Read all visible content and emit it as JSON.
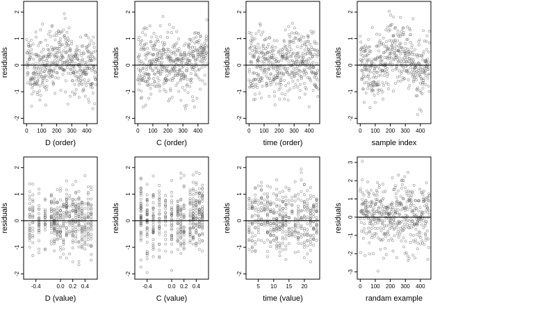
{
  "chart_data": [
    {
      "type": "scatter",
      "xlabel": "D (order)",
      "ylabel": "residuals",
      "xlim": [
        -20,
        470
      ],
      "ylim": [
        -2.2,
        2.4
      ],
      "xticks": [
        0,
        100,
        200,
        300,
        400
      ],
      "xtick_labels": [
        "0",
        "100",
        "200",
        "300",
        "400"
      ],
      "yticks": [
        -2,
        -1,
        0,
        1,
        2
      ],
      "ytick_labels": [
        "-2",
        "-1",
        "0",
        "1",
        "2"
      ],
      "hline": 0,
      "n_points": 450,
      "x_range": [
        0,
        460
      ],
      "x_values": "",
      "trend": [
        [
          0,
          0.2
        ],
        [
          50,
          -0.15
        ],
        [
          100,
          -0.1
        ],
        [
          150,
          0.05
        ],
        [
          200,
          0.35
        ],
        [
          250,
          0.45
        ],
        [
          300,
          0.0
        ],
        [
          350,
          -0.1
        ],
        [
          400,
          0.15
        ],
        [
          460,
          -0.1
        ]
      ],
      "spread": 0.6,
      "seed": 11
    },
    {
      "type": "scatter",
      "xlabel": "C (order)",
      "ylabel": "residuals",
      "xlim": [
        -20,
        470
      ],
      "ylim": [
        -2.2,
        2.4
      ],
      "xticks": [
        0,
        100,
        200,
        300,
        400
      ],
      "xtick_labels": [
        "0",
        "100",
        "200",
        "300",
        "400"
      ],
      "yticks": [
        -2,
        -1,
        0,
        1,
        2
      ],
      "ytick_labels": [
        "-2",
        "-1",
        "0",
        "1",
        "2"
      ],
      "hline": 0,
      "n_points": 450,
      "x_range": [
        0,
        460
      ],
      "x_values": "",
      "trend": [
        [
          0,
          0.1
        ],
        [
          100,
          -0.05
        ],
        [
          200,
          0.0
        ],
        [
          300,
          -0.1
        ],
        [
          400,
          0.3
        ],
        [
          460,
          0.45
        ]
      ],
      "spread": 0.6,
      "seed": 23
    },
    {
      "type": "scatter",
      "xlabel": "time (order)",
      "ylabel": "residuals",
      "xlim": [
        -20,
        470
      ],
      "ylim": [
        -2.2,
        2.4
      ],
      "xticks": [
        0,
        100,
        200,
        300,
        400
      ],
      "xtick_labels": [
        "0",
        "100",
        "200",
        "300",
        "400"
      ],
      "yticks": [
        -2,
        -1,
        0,
        1,
        2
      ],
      "ytick_labels": [
        "-2",
        "-1",
        "0",
        "1",
        "2"
      ],
      "hline": 0,
      "n_points": 450,
      "x_range": [
        0,
        460
      ],
      "x_values": "",
      "trend": [
        [
          0,
          0.1
        ],
        [
          50,
          -0.1
        ],
        [
          100,
          0.35
        ],
        [
          150,
          0.05
        ],
        [
          200,
          -0.2
        ],
        [
          250,
          0.1
        ],
        [
          300,
          0.15
        ],
        [
          350,
          0.0
        ],
        [
          400,
          0.3
        ],
        [
          460,
          -0.05
        ]
      ],
      "spread": 0.6,
      "seed": 37
    },
    {
      "type": "scatter",
      "xlabel": "sample index",
      "ylabel": "residuals",
      "xlim": [
        -20,
        470
      ],
      "ylim": [
        -2.2,
        2.4
      ],
      "xticks": [
        0,
        100,
        200,
        300,
        400
      ],
      "xtick_labels": [
        "0",
        "100",
        "200",
        "300",
        "400"
      ],
      "yticks": [
        -2,
        -1,
        0,
        1,
        2
      ],
      "ytick_labels": [
        "-2",
        "-1",
        "0",
        "1",
        "2"
      ],
      "hline": 0,
      "n_points": 450,
      "x_range": [
        0,
        460
      ],
      "x_values": "",
      "trend": [
        [
          0,
          0.1
        ],
        [
          50,
          -0.1
        ],
        [
          100,
          0.0
        ],
        [
          150,
          -0.05
        ],
        [
          200,
          0.55
        ],
        [
          250,
          0.5
        ],
        [
          300,
          0.25
        ],
        [
          350,
          0.15
        ],
        [
          400,
          -0.3
        ],
        [
          460,
          0.0
        ]
      ],
      "spread": 0.6,
      "seed": 41
    },
    {
      "type": "scatter",
      "xlabel": "D (value)",
      "ylabel": "residuals",
      "xlim": [
        -0.6,
        0.6
      ],
      "ylim": [
        -2.2,
        2.4
      ],
      "xticks": [
        -0.4,
        0.0,
        0.2,
        0.4
      ],
      "xtick_labels": [
        "-0.4",
        "0.0",
        "0.2",
        "0.4"
      ],
      "yticks": [
        -2,
        -1,
        0,
        1,
        2
      ],
      "ytick_labels": [
        "-2",
        "-1",
        "0",
        "1",
        "2"
      ],
      "hline": 0,
      "n_points": 450,
      "x_range": [
        -0.5,
        0.5
      ],
      "x_values": [
        -0.5,
        -0.45,
        -0.35,
        -0.25,
        -0.15,
        -0.1,
        -0.05,
        0.0,
        0.05,
        0.1,
        0.15,
        0.2,
        0.25,
        0.3,
        0.35,
        0.4,
        0.45,
        0.5
      ],
      "trend": [
        [
          -0.5,
          0.1
        ],
        [
          -0.2,
          -0.05
        ],
        [
          0.0,
          0.0
        ],
        [
          0.2,
          0.05
        ],
        [
          0.5,
          0.05
        ]
      ],
      "spread": 0.6,
      "seed": 53
    },
    {
      "type": "scatter",
      "xlabel": "C (value)",
      "ylabel": "residuals",
      "xlim": [
        -0.6,
        0.6
      ],
      "ylim": [
        -2.2,
        2.4
      ],
      "xticks": [
        -0.4,
        0.0,
        0.2,
        0.4
      ],
      "xtick_labels": [
        "-0.4",
        "0.0",
        "0.2",
        "0.4"
      ],
      "yticks": [
        -2,
        -1,
        0,
        1,
        2
      ],
      "ytick_labels": [
        "-2",
        "-1",
        "0",
        "1",
        "2"
      ],
      "hline": 0,
      "n_points": 450,
      "x_range": [
        -0.5,
        0.5
      ],
      "x_values": [
        -0.5,
        -0.4,
        -0.3,
        -0.2,
        -0.1,
        0.0,
        0.1,
        0.15,
        0.2,
        0.3,
        0.35,
        0.4,
        0.45,
        0.5
      ],
      "trend": [
        [
          -0.5,
          0.0
        ],
        [
          0.0,
          0.0
        ],
        [
          0.5,
          0.25
        ]
      ],
      "spread": 0.6,
      "seed": 67
    },
    {
      "type": "scatter",
      "xlabel": "time (value)",
      "ylabel": "residuals",
      "xlim": [
        1,
        25
      ],
      "ylim": [
        -2.2,
        2.4
      ],
      "xticks": [
        5,
        10,
        15,
        20
      ],
      "xtick_labels": [
        "5",
        "10",
        "15",
        "20"
      ],
      "yticks": [
        -2,
        -1,
        0,
        1,
        2
      ],
      "ytick_labels": [
        "-2",
        "-1",
        "0",
        "1",
        "2"
      ],
      "hline": 0,
      "n_points": 450,
      "x_range": [
        2,
        24
      ],
      "x_values": [
        2,
        3,
        4,
        5,
        6,
        7,
        8,
        9,
        10,
        11,
        12,
        13,
        14,
        15,
        16,
        17,
        18,
        19,
        20,
        21,
        22,
        23,
        24
      ],
      "trend": [
        [
          2,
          0.0
        ],
        [
          6,
          0.2
        ],
        [
          12,
          -0.1
        ],
        [
          18,
          0.1
        ],
        [
          24,
          0.0
        ]
      ],
      "spread": 0.6,
      "seed": 79
    },
    {
      "type": "scatter",
      "xlabel": "randam example",
      "ylabel": "residuals",
      "xlim": [
        -20,
        470
      ],
      "ylim": [
        -3.4,
        3.3
      ],
      "xticks": [
        0,
        100,
        200,
        300,
        400
      ],
      "xtick_labels": [
        "0",
        "100",
        "200",
        "300",
        "400"
      ],
      "yticks": [
        -3,
        -2,
        -1,
        0,
        1,
        2,
        3
      ],
      "ytick_labels": [
        "-3",
        "-2",
        "-1",
        "0",
        "1",
        "2",
        "3"
      ],
      "hline": 0,
      "n_points": 450,
      "x_range": [
        0,
        460
      ],
      "x_values": "",
      "trend": [
        [
          0,
          0.0
        ],
        [
          460,
          0.0
        ]
      ],
      "spread": 1.0,
      "seed": 97
    }
  ]
}
